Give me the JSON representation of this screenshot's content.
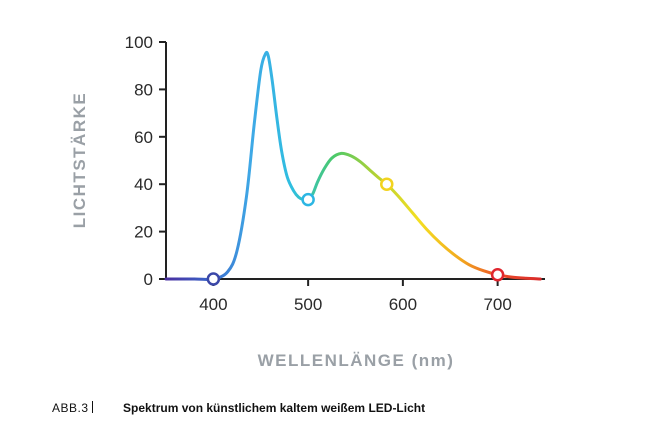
{
  "chart_data": {
    "type": "line",
    "xlabel": "WELLENLÄNGE (nm)",
    "ylabel": "LICHTSTÄRKE",
    "xlim": [
      350,
      750
    ],
    "ylim": [
      0,
      100
    ],
    "x_ticks": [
      400,
      500,
      600,
      700
    ],
    "y_ticks": [
      0,
      20,
      40,
      60,
      80,
      100
    ],
    "grid": false,
    "series": [
      {
        "x": [
          350,
          380,
          400,
          415,
          425,
          435,
          443,
          450,
          455,
          458,
          462,
          467,
          472,
          478,
          485,
          490,
          495,
          500,
          505,
          510,
          517,
          525,
          535,
          545,
          555,
          565,
          575,
          583,
          595,
          610,
          625,
          640,
          655,
          670,
          685,
          700,
          715,
          730,
          745
        ],
        "y": [
          0,
          0,
          0,
          3,
          12,
          35,
          65,
          88,
          95,
          94,
          84,
          68,
          54,
          43,
          37,
          34.5,
          33.5,
          33.5,
          36,
          41,
          46.5,
          51,
          53,
          52,
          49.5,
          46,
          42.5,
          40,
          35,
          28,
          21,
          15,
          10,
          6,
          3.5,
          1.8,
          0.8,
          0.3,
          0
        ],
        "color_stops": [
          "#4a2fa0",
          "#3a63c8",
          "#3fa8e6",
          "#2fbfe0",
          "#4bc96a",
          "#b6d232",
          "#f4df22",
          "#f2a81e",
          "#ea4a2a",
          "#d7262a"
        ]
      }
    ],
    "markers": [
      {
        "x": 400,
        "y": 0,
        "color": "#3b47a8"
      },
      {
        "x": 500,
        "y": 33.5,
        "color": "#2cb6e3"
      },
      {
        "x": 583,
        "y": 40,
        "color": "#f2d31f"
      },
      {
        "x": 700,
        "y": 1.8,
        "color": "#e0262e"
      }
    ]
  },
  "caption": {
    "label": "ABB.3",
    "text": "Spektrum von künstlichem kaltem weißem LED-Licht"
  }
}
